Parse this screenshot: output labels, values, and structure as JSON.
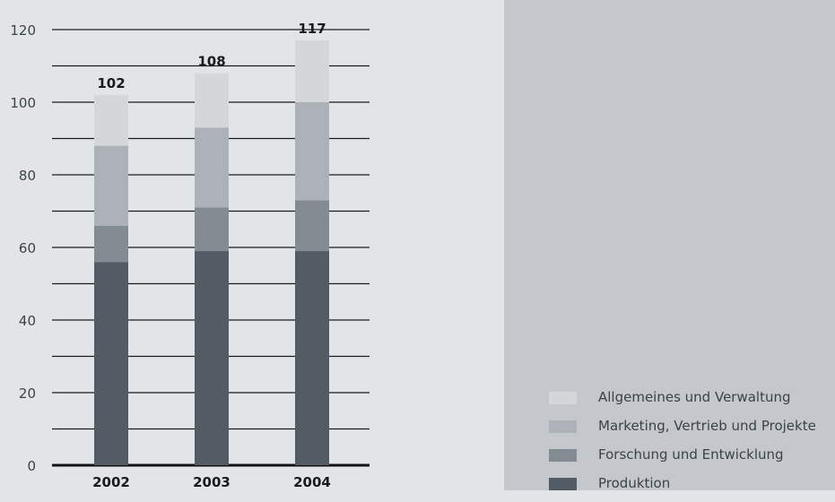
{
  "chart_data": {
    "type": "bar",
    "stacked": true,
    "categories": [
      "2002",
      "2003",
      "2004"
    ],
    "series": [
      {
        "name": "Produktion",
        "values": [
          56,
          59,
          59
        ],
        "color": "#535c64"
      },
      {
        "name": "Forschung und Entwicklung",
        "values": [
          10,
          12,
          14
        ],
        "color": "#848c93"
      },
      {
        "name": "Marketing, Vertrieb und Projekte",
        "values": [
          22,
          22,
          27
        ],
        "color": "#adb2b8"
      },
      {
        "name": "Allgemeines und Verwaltung",
        "values": [
          14,
          15,
          17
        ],
        "color": "#d4d7da"
      }
    ],
    "totals": [
      "102",
      "108",
      "117"
    ],
    "yticks": [
      "0",
      "20",
      "40",
      "60",
      "80",
      "100",
      "120"
    ],
    "ylim": [
      0,
      120
    ],
    "grid_step": 10,
    "title": "",
    "xlabel": "",
    "ylabel": "",
    "legend_position": "bottom-right",
    "colors": {
      "background": "#e2e5e7",
      "legend_panel": "#c4c7cc",
      "gridline": "#1c1c1c"
    }
  }
}
